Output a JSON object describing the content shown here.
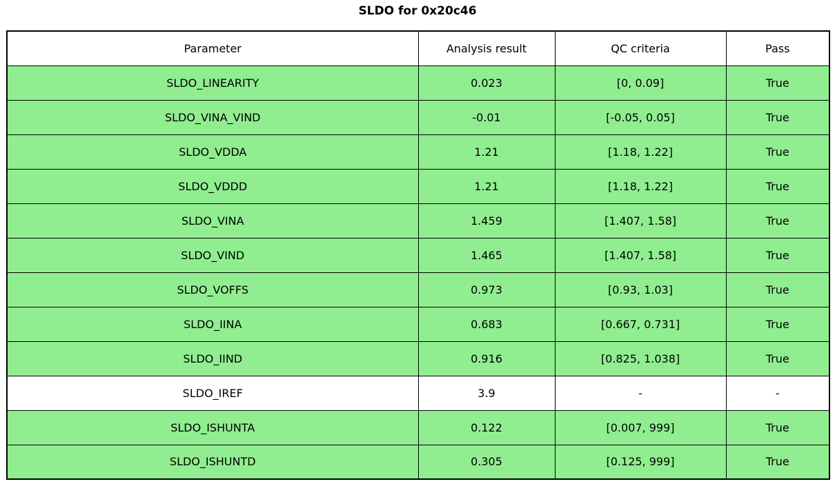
{
  "title": "SLDO for 0x20c46",
  "chart_data": {
    "type": "table",
    "title": "SLDO for 0x20c46",
    "columns": [
      "Parameter",
      "Analysis result",
      "QC criteria",
      "Pass"
    ],
    "rows": [
      {
        "parameter": "SLDO_LINEARITY",
        "analysis_result": "0.023",
        "qc_criteria": "[0, 0.09]",
        "pass": "True",
        "highlighted": true
      },
      {
        "parameter": "SLDO_VINA_VIND",
        "analysis_result": "-0.01",
        "qc_criteria": "[-0.05, 0.05]",
        "pass": "True",
        "highlighted": true
      },
      {
        "parameter": "SLDO_VDDA",
        "analysis_result": "1.21",
        "qc_criteria": "[1.18, 1.22]",
        "pass": "True",
        "highlighted": true
      },
      {
        "parameter": "SLDO_VDDD",
        "analysis_result": "1.21",
        "qc_criteria": "[1.18, 1.22]",
        "pass": "True",
        "highlighted": true
      },
      {
        "parameter": "SLDO_VINA",
        "analysis_result": "1.459",
        "qc_criteria": "[1.407, 1.58]",
        "pass": "True",
        "highlighted": true
      },
      {
        "parameter": "SLDO_VIND",
        "analysis_result": "1.465",
        "qc_criteria": "[1.407, 1.58]",
        "pass": "True",
        "highlighted": true
      },
      {
        "parameter": "SLDO_VOFFS",
        "analysis_result": "0.973",
        "qc_criteria": "[0.93, 1.03]",
        "pass": "True",
        "highlighted": true
      },
      {
        "parameter": "SLDO_IINA",
        "analysis_result": "0.683",
        "qc_criteria": "[0.667, 0.731]",
        "pass": "True",
        "highlighted": true
      },
      {
        "parameter": "SLDO_IIND",
        "analysis_result": "0.916",
        "qc_criteria": "[0.825, 1.038]",
        "pass": "True",
        "highlighted": true
      },
      {
        "parameter": "SLDO_IREF",
        "analysis_result": "3.9",
        "qc_criteria": "-",
        "pass": "-",
        "highlighted": false
      },
      {
        "parameter": "SLDO_ISHUNTA",
        "analysis_result": "0.122",
        "qc_criteria": "[0.007, 999]",
        "pass": "True",
        "highlighted": true
      },
      {
        "parameter": "SLDO_ISHUNTD",
        "analysis_result": "0.305",
        "qc_criteria": "[0.125, 999]",
        "pass": "True",
        "highlighted": true
      }
    ],
    "highlight_color": "#90ee90",
    "background_color": "#ffffff",
    "border_color": "#000000",
    "legend_position": "none",
    "grid": "full-cell-borders"
  }
}
